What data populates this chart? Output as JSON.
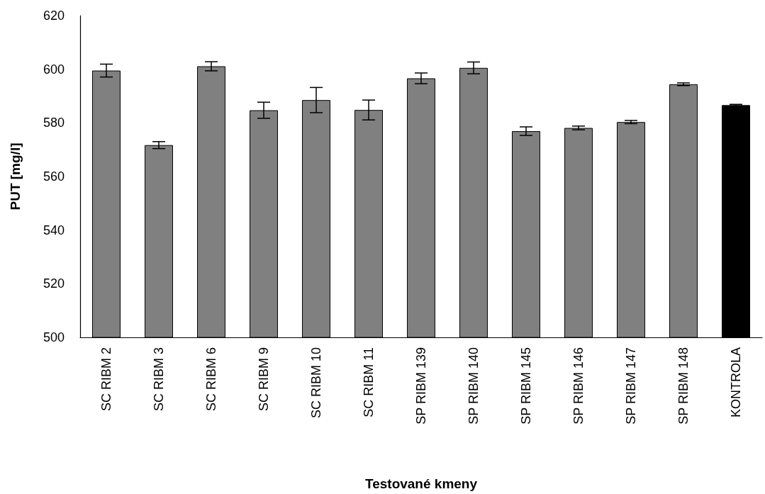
{
  "chart_data": {
    "type": "bar",
    "xlabel": "Testované kmeny",
    "ylabel": "PUT [mg/l]",
    "categories": [
      "SC RIBM 2",
      "SC RIBM 3",
      "SC RIBM 6",
      "SC RIBM 9",
      "SC RIBM 10",
      "SC RIBM 11",
      "SP RIBM 139",
      "SP RIBM 140",
      "SP RIBM 145",
      "SP RIBM 146",
      "SP RIBM 147",
      "SP RIBM 148",
      "KONTROLA"
    ],
    "values": [
      599.5,
      571.7,
      601.1,
      584.7,
      588.5,
      584.8,
      596.6,
      600.5,
      576.9,
      578.1,
      580.3,
      594.4,
      586.6
    ],
    "errors": [
      2.4,
      1.3,
      1.7,
      3,
      4.7,
      3.7,
      2,
      2.2,
      1.6,
      0.7,
      0.6,
      0.5,
      0.3
    ],
    "colors": [
      "#808080",
      "#808080",
      "#808080",
      "#808080",
      "#808080",
      "#808080",
      "#808080",
      "#808080",
      "#808080",
      "#808080",
      "#808080",
      "#808080",
      "#000000"
    ],
    "ylim": [
      500,
      620
    ],
    "yticks": [
      500,
      520,
      540,
      560,
      580,
      600,
      620
    ],
    "grid": false
  }
}
